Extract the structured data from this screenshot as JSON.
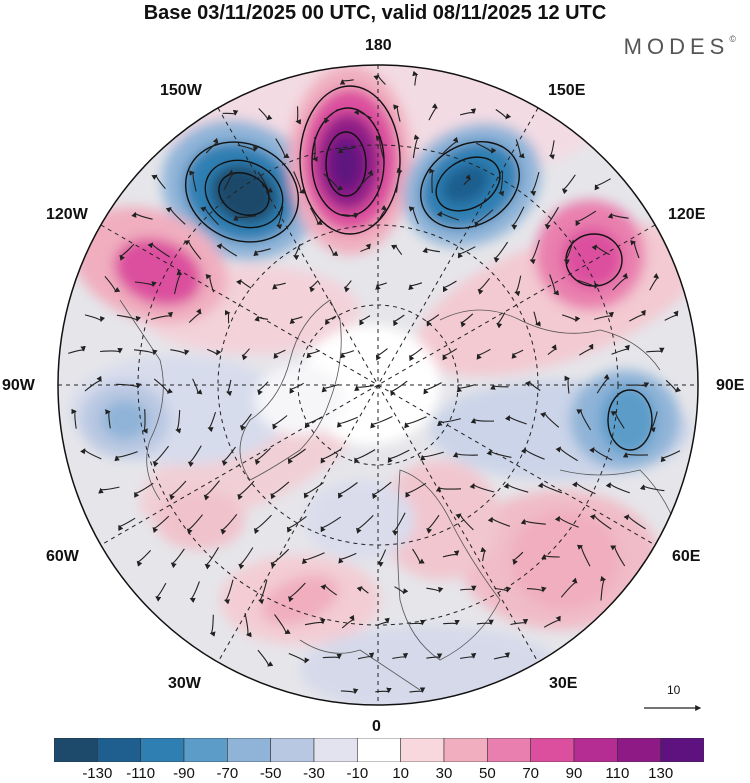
{
  "header": {
    "title": "Base 03/11/2025 00 UTC, valid 08/11/2025 12 UTC",
    "brand": "MODES"
  },
  "longitude_labels": {
    "lon_180": "180",
    "lon_150w": "150W",
    "lon_150e": "150E",
    "lon_120w": "120W",
    "lon_120e": "120E",
    "lon_90w": "90W",
    "lon_90e": "90E",
    "lon_60w": "60W",
    "lon_60e": "60E",
    "lon_30w": "30W",
    "lon_30e": "30E",
    "lon_0": "0"
  },
  "colorbar": {
    "ticks": [
      "-130",
      "-110",
      "-90",
      "-70",
      "-50",
      "-30",
      "-10",
      "10",
      "30",
      "50",
      "70",
      "90",
      "110",
      "130"
    ],
    "colors": [
      "#1d4a6b",
      "#1f5f8f",
      "#2f7fb3",
      "#5b9cc9",
      "#8fb4d8",
      "#b9c8e2",
      "#e3e3f0",
      "#ffffff",
      "#f8d8dc",
      "#f0aebf",
      "#e97fae",
      "#dc4f9e",
      "#b52c92",
      "#8e1a86",
      "#5e1280"
    ]
  },
  "reference_vector": {
    "label": "10"
  }
}
